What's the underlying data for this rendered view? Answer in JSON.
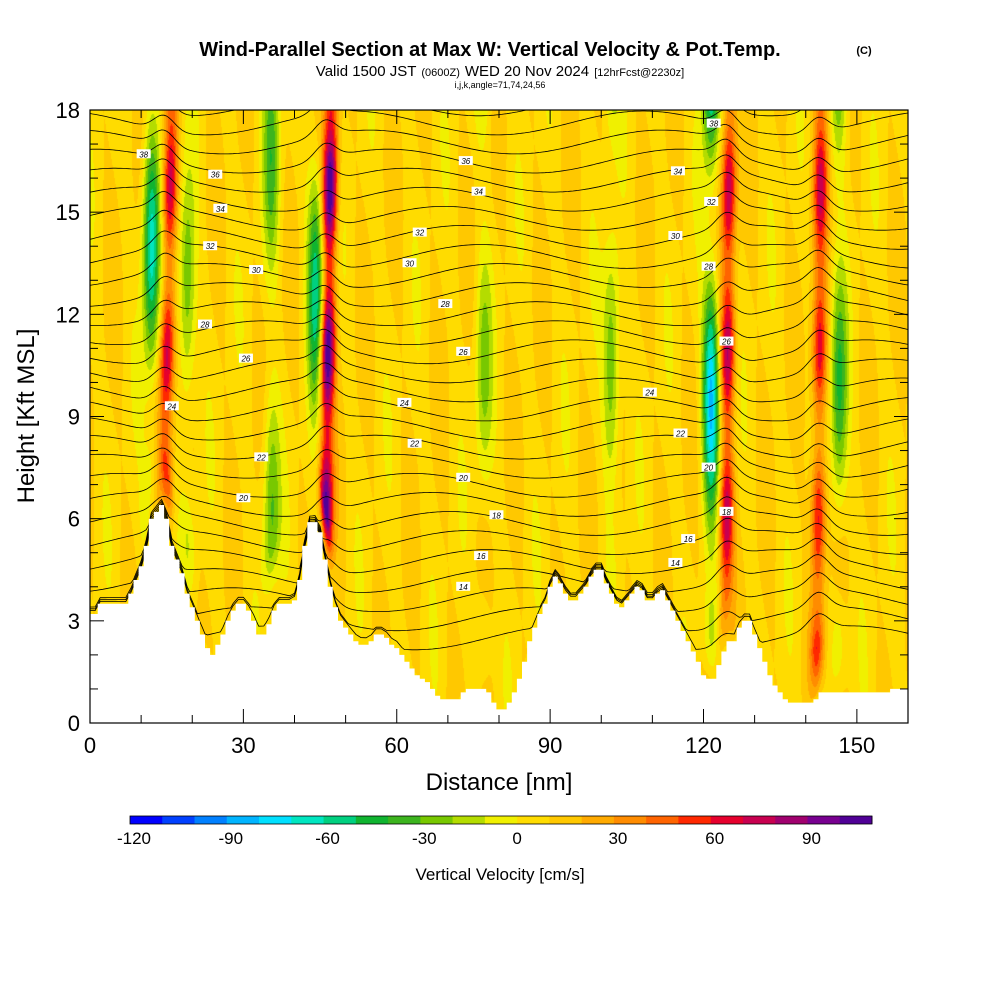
{
  "header": {
    "title": "Wind-Parallel Section at Max W: Vertical Velocity & Pot.Temp.",
    "copyright": "(C)",
    "valid_prefix": "Valid 1500 JST",
    "valid_zulu": "(0600Z)",
    "valid_date": "WED 20 Nov 2024",
    "forecast": "[12hrFcst@2230z]",
    "grid_info": "i,j,k,angle=71,74,24,56"
  },
  "chart_data": {
    "type": "heatmap",
    "xlabel": "Distance [nm]",
    "ylabel": "Height [Kft MSL]",
    "xlim": [
      0,
      160
    ],
    "ylim": [
      0,
      18
    ],
    "xticks": [
      0,
      30,
      60,
      90,
      120,
      150
    ],
    "yticks": [
      0,
      3,
      6,
      9,
      12,
      15,
      18
    ],
    "colorbar": {
      "label": "Vertical Velocity [cm/s]",
      "ticks": [
        -120,
        -90,
        -60,
        -30,
        0,
        30,
        60,
        90
      ],
      "range": [
        -120,
        110
      ],
      "colors": [
        "#0000ff",
        "#0040ff",
        "#0080ff",
        "#00b4ff",
        "#00e0ff",
        "#00e6c0",
        "#00d080",
        "#10b430",
        "#3cb41e",
        "#78c800",
        "#b4dc00",
        "#f0f000",
        "#ffdc00",
        "#ffc800",
        "#ffaa00",
        "#ff8c00",
        "#ff6400",
        "#ff2800",
        "#e6002d",
        "#c80050",
        "#a0006e",
        "#780090",
        "#500096"
      ]
    },
    "terrain": {
      "x": [
        0,
        1,
        2,
        3,
        4,
        5,
        6,
        7,
        8,
        9,
        10,
        11,
        12,
        13,
        14,
        15,
        16,
        17,
        18,
        19,
        20,
        21,
        22,
        23,
        24,
        25,
        26,
        27,
        28,
        29,
        30,
        31,
        32,
        33,
        34,
        35,
        36,
        37,
        38,
        39,
        40,
        41,
        42,
        43,
        44,
        45,
        46,
        47,
        48,
        49,
        50,
        51,
        52,
        53,
        54,
        55,
        56,
        57,
        58,
        59,
        60,
        61,
        62,
        63,
        64,
        65,
        66,
        67,
        68,
        69,
        70,
        71,
        72,
        73,
        74,
        75,
        76,
        77,
        78,
        79,
        80,
        81,
        82,
        83,
        84,
        85,
        86,
        87,
        88,
        89,
        90,
        91,
        92,
        93,
        94,
        95,
        96,
        97,
        98,
        99,
        100,
        101,
        102,
        103,
        104,
        105,
        106,
        107,
        108,
        109,
        110,
        111,
        112,
        113,
        114,
        115,
        116,
        117,
        118,
        119,
        120,
        121,
        122,
        123,
        124,
        125,
        126,
        127,
        128,
        129,
        130,
        131,
        132,
        133,
        134,
        135,
        136,
        137,
        138,
        139,
        140,
        141,
        142,
        143,
        144,
        145,
        146,
        147,
        148,
        149,
        150,
        151,
        152,
        153,
        154,
        155,
        156,
        157,
        158,
        159,
        160
      ],
      "height": [
        3.2,
        3.2,
        3.5,
        3.5,
        3.5,
        3.5,
        3.5,
        3.5,
        3.8,
        4.2,
        4.6,
        5.2,
        6.0,
        6.2,
        6.4,
        6.0,
        5.2,
        4.8,
        4.4,
        3.8,
        3.4,
        3.0,
        2.6,
        2.2,
        2.0,
        2.3,
        2.6,
        3.0,
        3.3,
        3.5,
        3.5,
        3.3,
        3.0,
        2.6,
        2.6,
        2.9,
        3.3,
        3.5,
        3.5,
        3.5,
        3.6,
        4.2,
        5.2,
        5.9,
        5.9,
        5.6,
        4.8,
        4.0,
        3.4,
        3.0,
        2.8,
        2.6,
        2.4,
        2.3,
        2.3,
        2.4,
        2.6,
        2.6,
        2.5,
        2.3,
        2.2,
        2.0,
        1.8,
        1.6,
        1.4,
        1.3,
        1.2,
        1.0,
        0.8,
        0.7,
        0.7,
        0.7,
        0.7,
        0.9,
        1.0,
        1.0,
        1.0,
        1.0,
        0.9,
        0.6,
        0.4,
        0.4,
        0.6,
        0.9,
        1.3,
        1.8,
        2.4,
        2.8,
        3.2,
        3.5,
        4.0,
        4.3,
        4.1,
        3.8,
        3.6,
        3.6,
        3.8,
        4.0,
        4.3,
        4.5,
        4.5,
        4.1,
        3.8,
        3.5,
        3.4,
        3.6,
        3.8,
        4.0,
        3.9,
        3.6,
        3.6,
        3.8,
        3.9,
        3.6,
        3.3,
        3.0,
        2.7,
        2.4,
        2.1,
        1.8,
        1.4,
        1.3,
        1.3,
        1.7,
        2.1,
        2.4,
        2.4,
        2.8,
        3.0,
        3.0,
        2.6,
        2.2,
        1.8,
        1.4,
        1.1,
        0.9,
        0.7,
        0.6,
        0.6,
        0.6,
        0.6,
        0.6,
        0.7,
        0.9,
        0.9,
        0.9,
        0.9,
        0.9,
        0.9,
        0.9,
        0.9,
        0.9,
        0.9,
        0.9,
        0.9,
        0.9,
        0.9,
        1.0,
        1.0,
        1.0,
        1.0
      ]
    },
    "updrafts": [
      {
        "x": 14.5,
        "peak": 70,
        "lean": 0.12
      },
      {
        "x": 46,
        "peak": 105,
        "lean": 0.1
      },
      {
        "x": 124.5,
        "peak": 70,
        "lean": 0.05
      },
      {
        "x": 142.5,
        "peak": 60,
        "lean": 0.04
      }
    ],
    "downdrafts": [
      {
        "x": 12,
        "peak": -75
      },
      {
        "x": 19,
        "peak": -40
      },
      {
        "x": 35.5,
        "peak": -40
      },
      {
        "x": 44.2,
        "peak": -65
      },
      {
        "x": 77,
        "peak": -30
      },
      {
        "x": 102,
        "peak": -40
      },
      {
        "x": 121.5,
        "peak": -90
      },
      {
        "x": 146.5,
        "peak": -50
      }
    ],
    "theta_contours": {
      "levels": [
        10,
        11,
        12,
        13,
        14,
        15,
        16,
        17,
        18,
        19,
        20,
        21,
        22,
        23,
        24,
        25,
        26,
        27,
        28,
        29,
        30,
        31,
        32,
        33,
        34,
        35,
        36,
        37,
        38
      ],
      "labels": [
        {
          "text": "38",
          "x": 10.5,
          "y": 16.7
        },
        {
          "text": "36",
          "x": 24.5,
          "y": 16.1
        },
        {
          "text": "34",
          "x": 25.5,
          "y": 15.1
        },
        {
          "text": "32",
          "x": 23.5,
          "y": 14.0
        },
        {
          "text": "30",
          "x": 32.5,
          "y": 13.3
        },
        {
          "text": "28",
          "x": 22.5,
          "y": 11.7
        },
        {
          "text": "26",
          "x": 30.5,
          "y": 10.7
        },
        {
          "text": "24",
          "x": 16.0,
          "y": 9.3
        },
        {
          "text": "22",
          "x": 33.5,
          "y": 7.8
        },
        {
          "text": "20",
          "x": 30.0,
          "y": 6.6
        },
        {
          "text": "36",
          "x": 73.5,
          "y": 16.5
        },
        {
          "text": "34",
          "x": 76.0,
          "y": 15.6
        },
        {
          "text": "32",
          "x": 64.5,
          "y": 14.4
        },
        {
          "text": "30",
          "x": 62.5,
          "y": 13.5
        },
        {
          "text": "28",
          "x": 69.5,
          "y": 12.3
        },
        {
          "text": "26",
          "x": 73.0,
          "y": 10.9
        },
        {
          "text": "24",
          "x": 61.5,
          "y": 9.4
        },
        {
          "text": "22",
          "x": 63.5,
          "y": 8.2
        },
        {
          "text": "20",
          "x": 73.0,
          "y": 7.2
        },
        {
          "text": "18",
          "x": 79.5,
          "y": 6.1
        },
        {
          "text": "16",
          "x": 76.5,
          "y": 4.9
        },
        {
          "text": "14",
          "x": 73.0,
          "y": 4.0
        },
        {
          "text": "38",
          "x": 122.0,
          "y": 17.6
        },
        {
          "text": "34",
          "x": 115.0,
          "y": 16.2
        },
        {
          "text": "32",
          "x": 121.5,
          "y": 15.3
        },
        {
          "text": "30",
          "x": 114.5,
          "y": 14.3
        },
        {
          "text": "28",
          "x": 121.0,
          "y": 13.4
        },
        {
          "text": "26",
          "x": 124.5,
          "y": 11.2
        },
        {
          "text": "24",
          "x": 109.5,
          "y": 9.7
        },
        {
          "text": "22",
          "x": 115.5,
          "y": 8.5
        },
        {
          "text": "20",
          "x": 121.0,
          "y": 7.5
        },
        {
          "text": "18",
          "x": 124.5,
          "y": 6.2
        },
        {
          "text": "16",
          "x": 117.0,
          "y": 5.4
        },
        {
          "text": "14",
          "x": 114.5,
          "y": 4.7
        }
      ]
    }
  }
}
